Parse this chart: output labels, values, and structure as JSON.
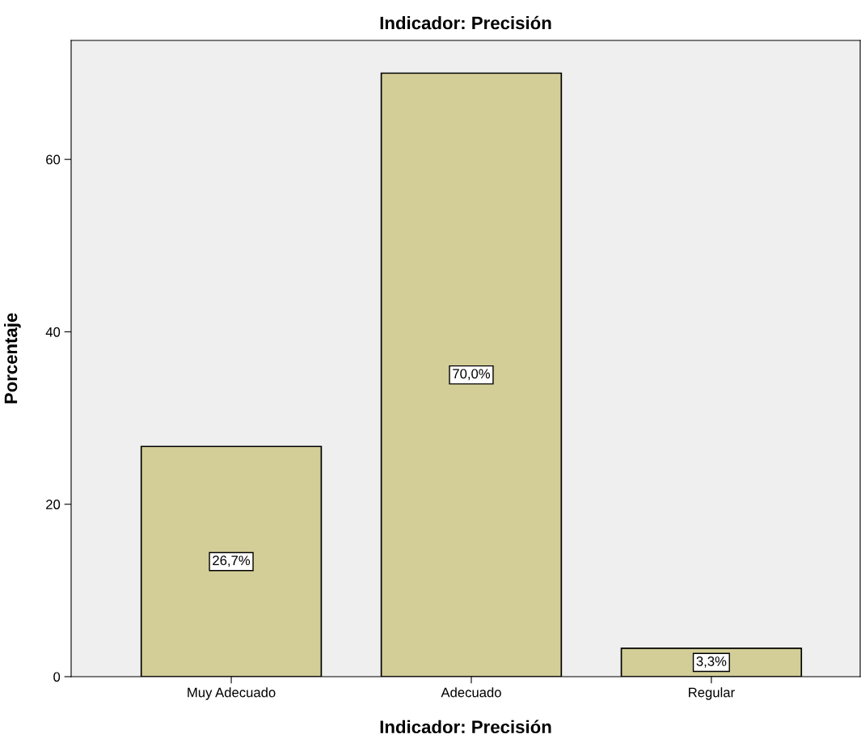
{
  "chart_data": {
    "type": "bar",
    "title": "Indicador: Precisión",
    "xlabel": "Indicador: Precisión",
    "ylabel": "Porcentaje",
    "categories": [
      "Muy Adecuado",
      "Adecuado",
      "Regular"
    ],
    "values": [
      26.7,
      70.0,
      3.3
    ],
    "value_labels": [
      "26,7%",
      "70,0%",
      "3,3%"
    ],
    "color": "#d3ce97",
    "ylim": [
      0,
      73.8
    ],
    "yticks": [
      0,
      20,
      40,
      60
    ],
    "grid": false,
    "legend": false
  }
}
